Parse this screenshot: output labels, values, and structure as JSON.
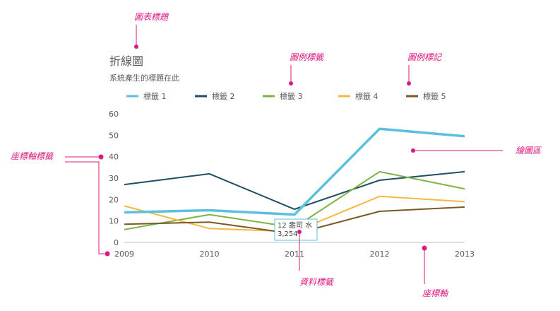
{
  "chart_data": {
    "type": "line",
    "title": "折線圖",
    "subtitle": "系統產生的標題在此",
    "categories": [
      "2009",
      "2010",
      "2011",
      "2012",
      "2013"
    ],
    "ylim": [
      0,
      60
    ],
    "yticks": [
      "0",
      "10",
      "20",
      "30",
      "40",
      "50",
      "60"
    ],
    "legend_position": "top",
    "grid": false,
    "series": [
      {
        "name": "標籤 1",
        "color": "#5bc0de",
        "values": [
          14,
          15,
          13,
          53,
          49.5
        ]
      },
      {
        "name": "標籤 2",
        "color": "#1f4e66",
        "values": [
          27,
          32,
          15.5,
          29,
          33
        ]
      },
      {
        "name": "標籤 3",
        "color": "#7cb342",
        "values": [
          6,
          13,
          7,
          33,
          25
        ]
      },
      {
        "name": "標籤 4",
        "color": "#f4b942",
        "values": [
          17,
          6.5,
          5,
          21.5,
          19
        ]
      },
      {
        "name": "標籤 5",
        "color": "#7a5a24",
        "values": [
          8.5,
          9.5,
          4,
          14.5,
          16.5
        ]
      }
    ],
    "data_label": {
      "line1": "12 盎司 水",
      "line2": "3,254"
    }
  },
  "callouts": {
    "chart_title": "圖表標題",
    "legend_label": "圖例標籤",
    "legend_marker": "圖例標記",
    "axis_label": "座標軸標籤",
    "plot_area": "繪圖區",
    "data_label": "資料標籤",
    "axis": "座標軸"
  },
  "colors": {
    "callout": "#e0167e",
    "axis": "#bfbfbf",
    "text": "#595959"
  }
}
